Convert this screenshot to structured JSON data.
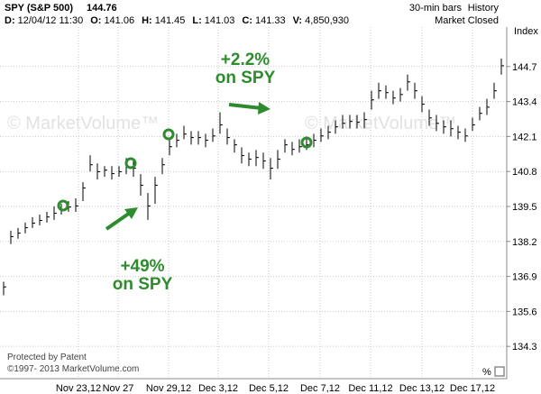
{
  "chart_data": {
    "type": "hlc",
    "symbol": "SPY (S&P 500)",
    "last": 144.76,
    "info": [
      {
        "label": "D:",
        "value": "12/04/12 11:30"
      },
      {
        "label": "O:",
        "value": 141.06
      },
      {
        "label": "H:",
        "value": 141.45
      },
      {
        "label": "L:",
        "value": 141.03
      },
      {
        "label": "C:",
        "value": 141.33
      },
      {
        "label": "V:",
        "value": "4,850,930"
      }
    ],
    "bar_type": "30-min bars",
    "history": "History",
    "status": "Market Closed",
    "axis_label": "Index",
    "watermark": "© MarketVolume™",
    "footer": [
      "Protected by Patent",
      "©1997- 2013 MarketVolume.com"
    ],
    "percent_button": "%",
    "annotations": [
      [
        "+2.2%",
        "on SPY"
      ],
      [
        "+49%",
        "on SPY"
      ]
    ],
    "x_labels": [
      "Nov 23,12",
      "Nov 27",
      "Nov 29,12",
      "Dec 3,12",
      "Dec 5,12",
      "Dec 7,12",
      "Dec 11,12",
      "Dec 13,12",
      "Dec 17,12"
    ],
    "color": "#000000",
    "grid": true,
    "ylim": [
      133.1,
      146.0
    ],
    "yticks": [
      134.3,
      135.6,
      136.9,
      138.2,
      139.5,
      140.8,
      142.1,
      143.4,
      144.7
    ],
    "high": [
      136.7,
      138.6,
      138.7,
      138.9,
      139.1,
      139.2,
      139.3,
      139.5,
      139.6,
      139.7,
      139.8,
      140.4,
      141.4,
      141.1,
      141.0,
      141.0,
      141.0,
      141.3,
      141.2,
      140.7,
      140.0,
      140.6,
      141.3,
      142.0,
      142.2,
      142.5,
      142.3,
      142.3,
      142.2,
      142.4,
      143.0,
      142.4,
      142.0,
      141.7,
      141.5,
      141.6,
      141.5,
      141.3,
      141.6,
      142.0,
      141.9,
      142.0,
      142.1,
      142.2,
      142.4,
      142.5,
      142.7,
      142.9,
      142.9,
      142.9,
      143.0,
      143.8,
      144.1,
      144.0,
      143.8,
      143.9,
      144.4,
      144.1,
      143.6,
      143.1,
      142.9,
      142.7,
      142.7,
      142.5,
      142.4,
      142.8,
      143.2,
      143.5,
      144.1,
      145.0
    ],
    "low": [
      136.2,
      138.1,
      138.3,
      138.5,
      138.7,
      138.8,
      138.9,
      139.0,
      139.2,
      139.3,
      139.3,
      139.7,
      140.8,
      140.5,
      140.6,
      140.5,
      140.6,
      140.7,
      140.6,
      139.9,
      139.0,
      139.6,
      140.7,
      141.4,
      141.7,
      142.0,
      141.8,
      141.8,
      141.7,
      141.9,
      142.2,
      141.8,
      141.5,
      141.1,
      141.0,
      141.0,
      140.9,
      140.5,
      140.9,
      141.5,
      141.4,
      141.5,
      141.6,
      141.7,
      141.9,
      142.0,
      142.2,
      142.4,
      142.4,
      142.4,
      142.4,
      143.1,
      143.5,
      143.5,
      143.3,
      143.4,
      143.8,
      143.5,
      143.0,
      142.5,
      142.3,
      142.2,
      142.1,
      142.0,
      141.9,
      142.3,
      142.7,
      142.9,
      143.5,
      144.4
    ],
    "close": [
      136.51,
      138.38,
      138.51,
      138.71,
      138.88,
      138.98,
      139.11,
      139.25,
      139.38,
      139.48,
      139.52,
      140.19,
      141.05,
      140.79,
      140.85,
      140.72,
      140.79,
      140.99,
      140.92,
      140.29,
      139.52,
      140.29,
      141.05,
      141.72,
      141.96,
      142.19,
      142.06,
      142.06,
      141.96,
      142.12,
      142.53,
      142.06,
      141.79,
      141.39,
      141.26,
      141.32,
      141.19,
      140.92,
      141.26,
      141.79,
      141.62,
      141.72,
      141.79,
      141.96,
      142.12,
      142.26,
      142.46,
      142.59,
      142.66,
      142.63,
      142.73,
      143.46,
      143.8,
      143.73,
      143.53,
      143.66,
      144.13,
      143.8,
      143.3,
      142.79,
      142.59,
      142.46,
      142.39,
      142.26,
      142.12,
      142.53,
      142.96,
      143.19,
      143.8,
      144.73
    ]
  }
}
